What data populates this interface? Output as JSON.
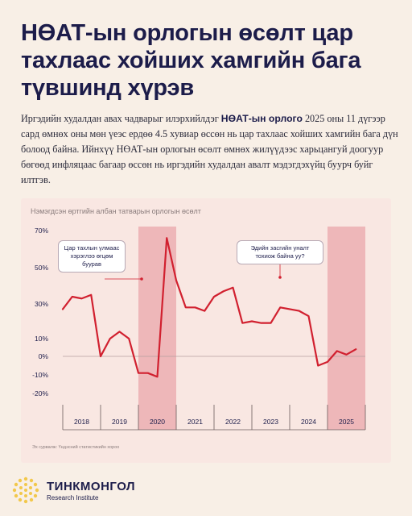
{
  "header": {
    "title": "НӨАТ-ын орлогын өсөлт цар тахлаас хойших хамгийн бага түвшинд хүрэв"
  },
  "intro": {
    "part1": "Иргэдийн худалдан авах чадварыг илэрхийлдэг ",
    "bold": "НӨАТ-ын орлого",
    "part2": " 2025 оны 11 дүгээр сард өмнөх оны мөн үеэс ердөө 4.5 хувиар өссөн нь цар тахлаас хойших хамгийн бага дүн болоод байна. Ийнхүү НӨАТ-ын орлогын өсөлт өмнөх жилүүдээс харьцангуй доогуур бөгөөд инфляцаас багаар өссөн нь иргэдийн худалдан авалт мэдэгдэхүйц буурч буйг илтгэв."
  },
  "annotations": {
    "left": "Цар тахлын үлмаас хэрэглээ өгцөм буурав",
    "right": "Эдийн засгийн уналт тохиож байна уу?"
  },
  "source": "Эх сурвалж: Үндэсний статистикийн хороо",
  "brand": {
    "name": "ТИНКМОНГОЛ",
    "sub": "Research Institute"
  },
  "colors": {
    "line": "#d1202f",
    "shade": "#eeb7b9",
    "text": "#1c1c4a",
    "background": "#f8efe6",
    "card": "#f9e7e2"
  },
  "chart_data": {
    "type": "line",
    "title": "Нэмэгдсэн өртгийн албан татварын орлогын өсөлт",
    "xlabel": "",
    "ylabel": "",
    "yticks": [
      "70%",
      "50%",
      "30%",
      "10%",
      "0%",
      "-10%",
      "-20%"
    ],
    "ytick_values": [
      70,
      50,
      30,
      10,
      0,
      -10,
      -20
    ],
    "ylim": [
      -20,
      70
    ],
    "categories": [
      "2018",
      "2019",
      "2020",
      "2021",
      "2022",
      "2023",
      "2024",
      "2025"
    ],
    "shaded_years": [
      "2020",
      "2025"
    ],
    "grid": false,
    "series": [
      {
        "name": "",
        "x": [
          2018.0,
          2018.25,
          2018.5,
          2018.75,
          2019.0,
          2019.25,
          2019.5,
          2019.75,
          2020.0,
          2020.25,
          2020.5,
          2020.75,
          2021.0,
          2021.25,
          2021.5,
          2021.75,
          2022.0,
          2022.25,
          2022.5,
          2022.75,
          2023.0,
          2023.25,
          2023.5,
          2023.75,
          2024.0,
          2024.25,
          2024.5,
          2024.75,
          2025.0,
          2025.25,
          2025.5,
          2025.75
        ],
        "values": [
          27,
          34,
          33,
          35,
          0,
          10,
          14,
          10,
          -9,
          -9,
          -11,
          66,
          43,
          28,
          28,
          26,
          34,
          37,
          39,
          19,
          20,
          19,
          19,
          28,
          27,
          26,
          23,
          -5,
          -3,
          3,
          1,
          4
        ]
      }
    ]
  }
}
